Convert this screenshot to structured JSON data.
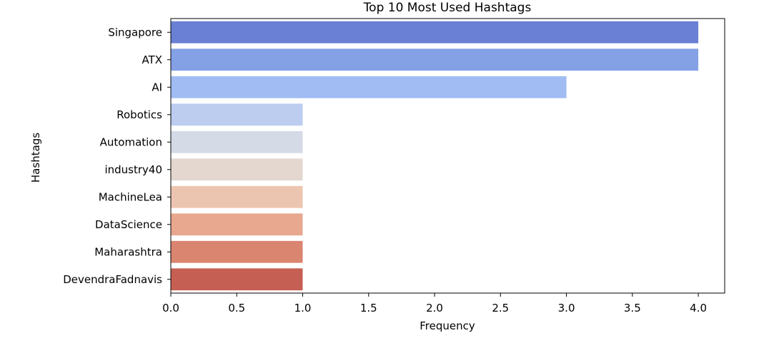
{
  "chart_data": {
    "type": "bar",
    "orientation": "horizontal",
    "title": "Top 10 Most Used Hashtags",
    "xlabel": "Frequency",
    "ylabel": "Hashtags",
    "categories": [
      "Singapore",
      "ATX",
      "AI",
      "Robotics",
      "Automation",
      "industry40",
      "MachineLea",
      "DataScience",
      "Maharashtra",
      "DevendraFadnavis"
    ],
    "values": [
      4,
      4,
      3,
      1,
      1,
      1,
      1,
      1,
      1,
      1
    ],
    "bar_colors": [
      "#6a80d4",
      "#84a1e6",
      "#a1bcf3",
      "#bccdf0",
      "#d4dbe6",
      "#e4d7cf",
      "#ecc5b1",
      "#e8a88f",
      "#da8570",
      "#c65f53"
    ],
    "xlim": [
      0,
      4.2
    ],
    "xticks": [
      "0.0",
      "0.5",
      "1.0",
      "1.5",
      "2.0",
      "2.5",
      "3.0",
      "3.5",
      "4.0"
    ],
    "grid": false
  }
}
